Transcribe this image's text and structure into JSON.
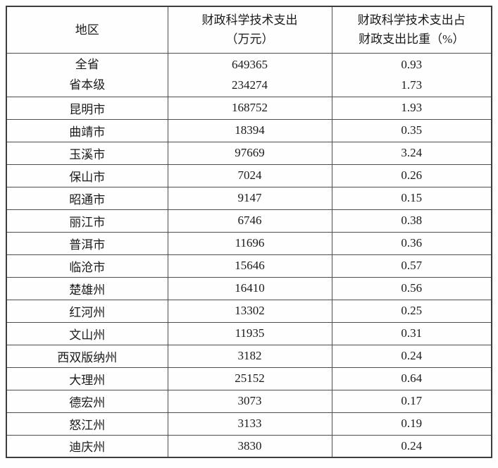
{
  "page": {
    "background_color": "#fefefe",
    "text_color": "#1a1a1a",
    "border_color": "#4d4d4d"
  },
  "table": {
    "columns": [
      {
        "id": "region",
        "label_lines": [
          "地区"
        ]
      },
      {
        "id": "expenditure",
        "label_lines": [
          "财政科学技术支出",
          "（万元）"
        ]
      },
      {
        "id": "ratio",
        "label_lines": [
          "财政科学技术支出占",
          "财政支出比重（%）"
        ]
      }
    ],
    "summary_group": [
      {
        "region": "全省",
        "expenditure": "649365",
        "ratio": "0.93"
      },
      {
        "region": "省本级",
        "expenditure": "234274",
        "ratio": "1.73"
      }
    ],
    "rows": [
      {
        "region": "昆明市",
        "expenditure": "168752",
        "ratio": "1.93"
      },
      {
        "region": "曲靖市",
        "expenditure": "18394",
        "ratio": "0.35"
      },
      {
        "region": "玉溪市",
        "expenditure": "97669",
        "ratio": "3.24"
      },
      {
        "region": "保山市",
        "expenditure": "7024",
        "ratio": "0.26"
      },
      {
        "region": "昭通市",
        "expenditure": "9147",
        "ratio": "0.15"
      },
      {
        "region": "丽江市",
        "expenditure": "6746",
        "ratio": "0.38"
      },
      {
        "region": "普洱市",
        "expenditure": "11696",
        "ratio": "0.36"
      },
      {
        "region": "临沧市",
        "expenditure": "15646",
        "ratio": "0.57"
      },
      {
        "region": "楚雄州",
        "expenditure": "16410",
        "ratio": "0.56"
      },
      {
        "region": "红河州",
        "expenditure": "13302",
        "ratio": "0.25"
      },
      {
        "region": "文山州",
        "expenditure": "11935",
        "ratio": "0.31"
      },
      {
        "region": "西双版纳州",
        "expenditure": "3182",
        "ratio": "0.24"
      },
      {
        "region": "大理州",
        "expenditure": "25152",
        "ratio": "0.64"
      },
      {
        "region": "德宏州",
        "expenditure": "3073",
        "ratio": "0.17"
      },
      {
        "region": "怒江州",
        "expenditure": "3133",
        "ratio": "0.19"
      },
      {
        "region": "迪庆州",
        "expenditure": "3830",
        "ratio": "0.24"
      }
    ]
  }
}
